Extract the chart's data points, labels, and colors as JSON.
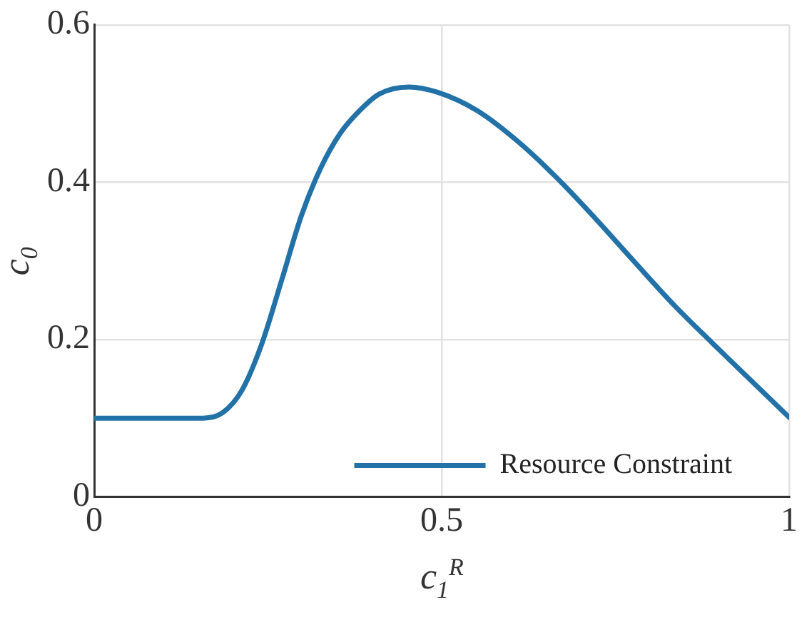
{
  "chart_data": {
    "type": "line",
    "xlabel": "c$_{1}$$^{R}$",
    "ylabel": "c$_{0}$",
    "xlim": [
      0,
      1
    ],
    "ylim": [
      0,
      0.6
    ],
    "xticks": [
      0,
      0.5,
      1
    ],
    "yticks": [
      0,
      0.2,
      0.4,
      0.6
    ],
    "grid": true,
    "legend": "bottom right",
    "series": [
      {
        "name": "Resource Constraint",
        "color": "#2272a8",
        "x": [
          0,
          0.157,
          0.185,
          0.213,
          0.241,
          0.27,
          0.298,
          0.326,
          0.354,
          0.382,
          0.41,
          0.453,
          0.495,
          0.551,
          0.608,
          0.664,
          0.721,
          0.777,
          0.834,
          0.89,
          0.946,
          1
        ],
        "values": [
          0.1,
          0.1,
          0.107,
          0.136,
          0.194,
          0.276,
          0.357,
          0.418,
          0.462,
          0.491,
          0.512,
          0.521,
          0.514,
          0.491,
          0.453,
          0.407,
          0.354,
          0.299,
          0.244,
          0.195,
          0.147,
          0.101
        ]
      }
    ]
  }
}
